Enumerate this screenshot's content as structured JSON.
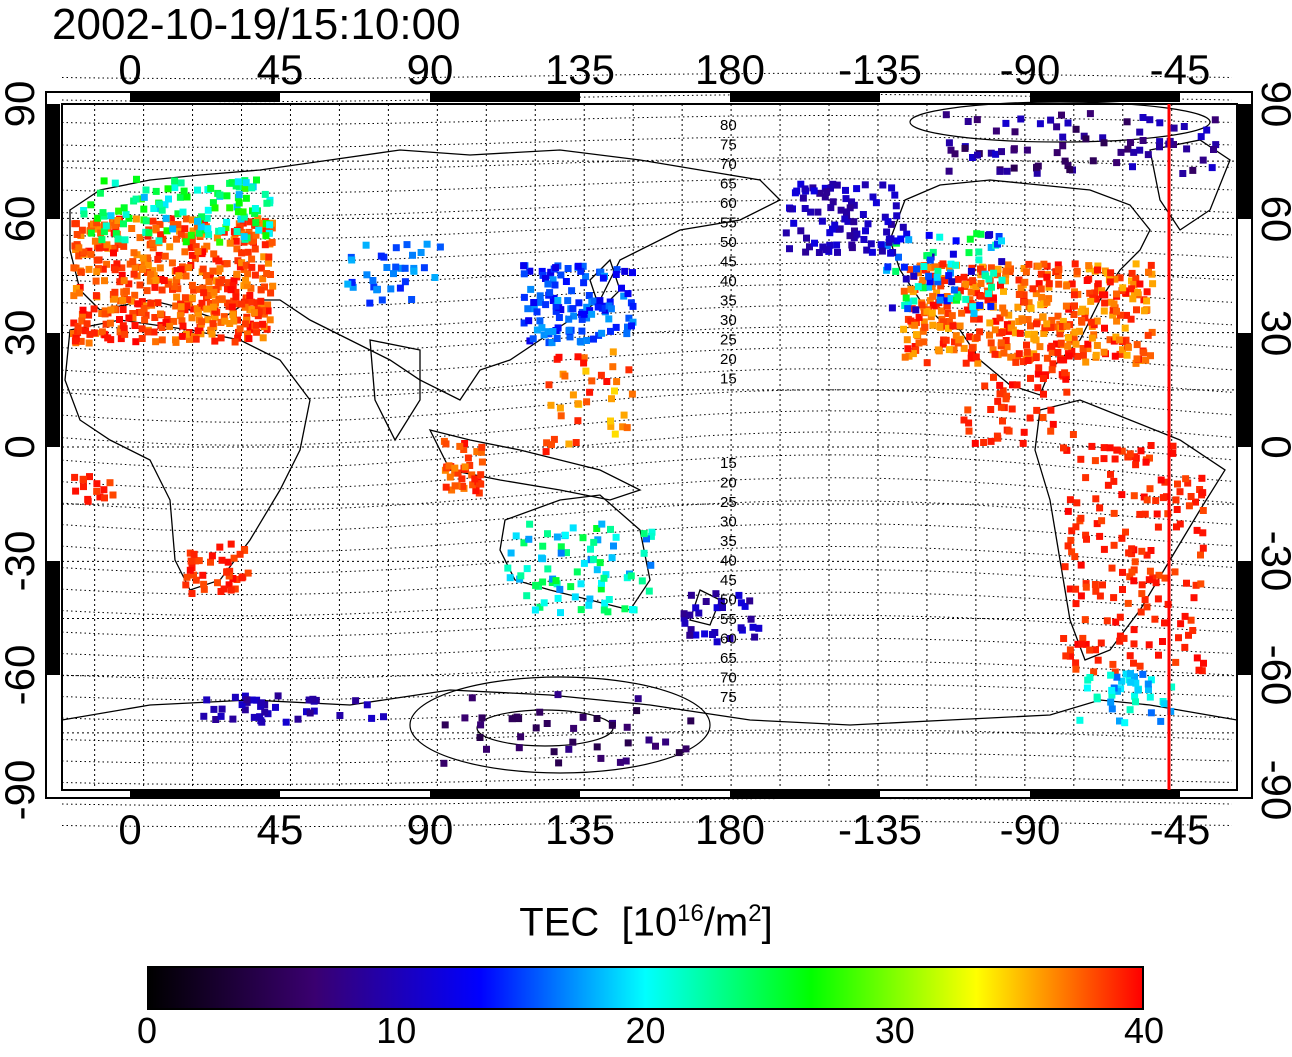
{
  "timestamp": "2002-10-19/15:10:00",
  "top_lon_ticks": [
    "0",
    "45",
    "90",
    "135",
    "180",
    "-135",
    "-90",
    "-45"
  ],
  "bottom_lon_ticks": [
    "0",
    "45",
    "90",
    "135",
    "180",
    "-135",
    "-90",
    "-45"
  ],
  "left_lat_ticks": [
    "90",
    "60",
    "30",
    "0",
    "-30",
    "-60",
    "-90"
  ],
  "right_lat_ticks": [
    "90",
    "60",
    "30",
    "0",
    "-30",
    "-60",
    "-90"
  ],
  "contour_labels_north": [
    "80",
    "75",
    "70",
    "65",
    "60",
    "55",
    "50",
    "45",
    "40",
    "35",
    "30",
    "25",
    "20",
    "15"
  ],
  "contour_labels_south": [
    "15",
    "20",
    "25",
    "30",
    "35",
    "40",
    "45",
    "50",
    "55",
    "60",
    "65",
    "70",
    "75"
  ],
  "colorbar": {
    "title_main": "TEC",
    "title_unit_prefix": "[10",
    "title_unit_exp": "16",
    "title_unit_mid": "/m",
    "title_unit_exp2": "2",
    "title_unit_suffix": "]",
    "min": 0,
    "max": 40,
    "ticks": [
      "0",
      "10",
      "20",
      "30",
      "40"
    ],
    "stops": [
      "#000000",
      "#3a0070",
      "#0000ff",
      "#00ffff",
      "#00ff00",
      "#ffff00",
      "#ff0000"
    ]
  },
  "terminator_line_color": "#ff0000"
}
